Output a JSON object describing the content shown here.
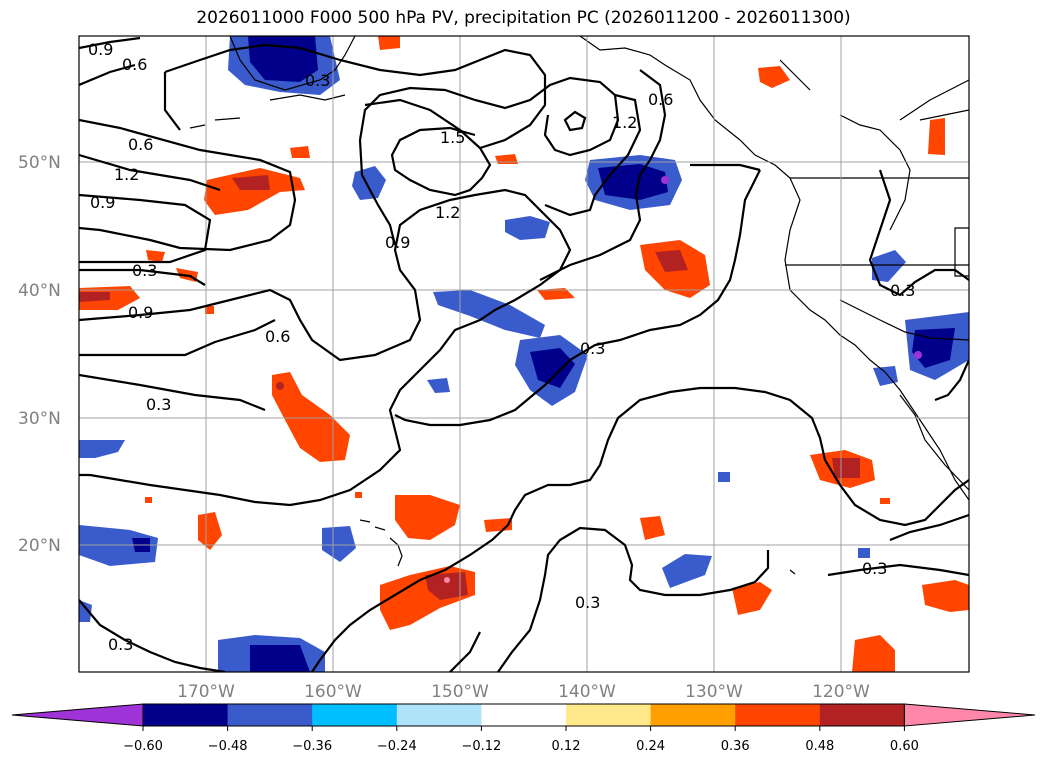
{
  "title": "2026011000 F000 500 hPa PV, precipitation PC (2026011200 - 2026011300)",
  "map": {
    "lat_labels": [
      "50°N",
      "40°N",
      "30°N",
      "20°N"
    ],
    "lon_labels": [
      "170°W",
      "160°W",
      "150°W",
      "140°W",
      "130°W",
      "120°W"
    ]
  },
  "pv_contour_labels": [
    "0.9",
    "0.6",
    "0.3",
    "0.6",
    "1.2",
    "0.9",
    "0.3",
    "0.9",
    "1.5",
    "1.2",
    "0.9",
    "0.6",
    "1.2",
    "0.6",
    "0.3",
    "0.3",
    "0.3",
    "0.3",
    "0.3",
    "0.3"
  ],
  "colorbar": {
    "ticks": [
      "−0.60",
      "−0.48",
      "−0.36",
      "−0.24",
      "−0.12",
      "0.12",
      "0.24",
      "0.36",
      "0.48",
      "0.60"
    ],
    "colors": [
      "#a033d8",
      "#00008b",
      "#3a5bcc",
      "#00bfff",
      "#aee3fa",
      "#ffffff",
      "#ffe98a",
      "#ffa000",
      "#ff4500",
      "#b22222",
      "#ff88aa"
    ]
  }
}
